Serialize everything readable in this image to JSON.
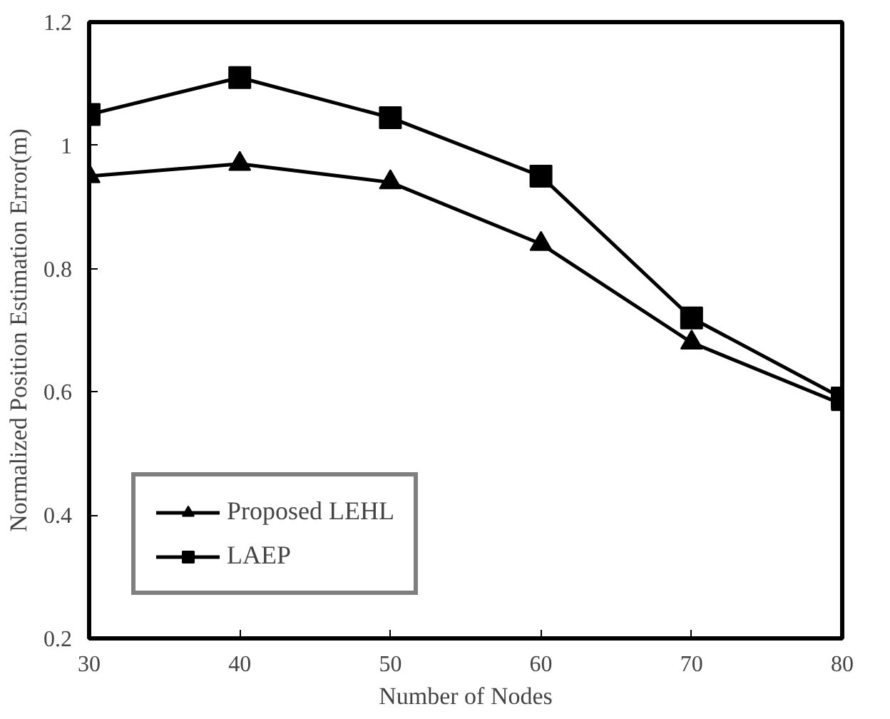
{
  "chart_data": {
    "type": "line",
    "xlabel": "Number of Nodes",
    "ylabel": "Normalized Position Estimation Error(m)",
    "x": [
      30,
      40,
      50,
      60,
      70,
      80
    ],
    "series": [
      {
        "name": "Proposed LEHL",
        "color": "#000000",
        "marker": "triangle",
        "values": [
          0.95,
          0.97,
          0.94,
          0.84,
          0.68,
          0.58
        ]
      },
      {
        "name": "LAEP",
        "color": "#000000",
        "marker": "square",
        "values": [
          1.05,
          1.11,
          1.045,
          0.95,
          0.72,
          0.59
        ]
      }
    ],
    "xlim": [
      30,
      80
    ],
    "xticks": [
      30,
      40,
      50,
      60,
      70,
      80
    ],
    "ylim": [
      0.2,
      1.2
    ],
    "yticks": [
      0.2,
      0.4,
      0.6,
      0.8,
      1,
      1.2
    ],
    "grid": false,
    "legend": "bottom left",
    "line_style": "solid"
  }
}
